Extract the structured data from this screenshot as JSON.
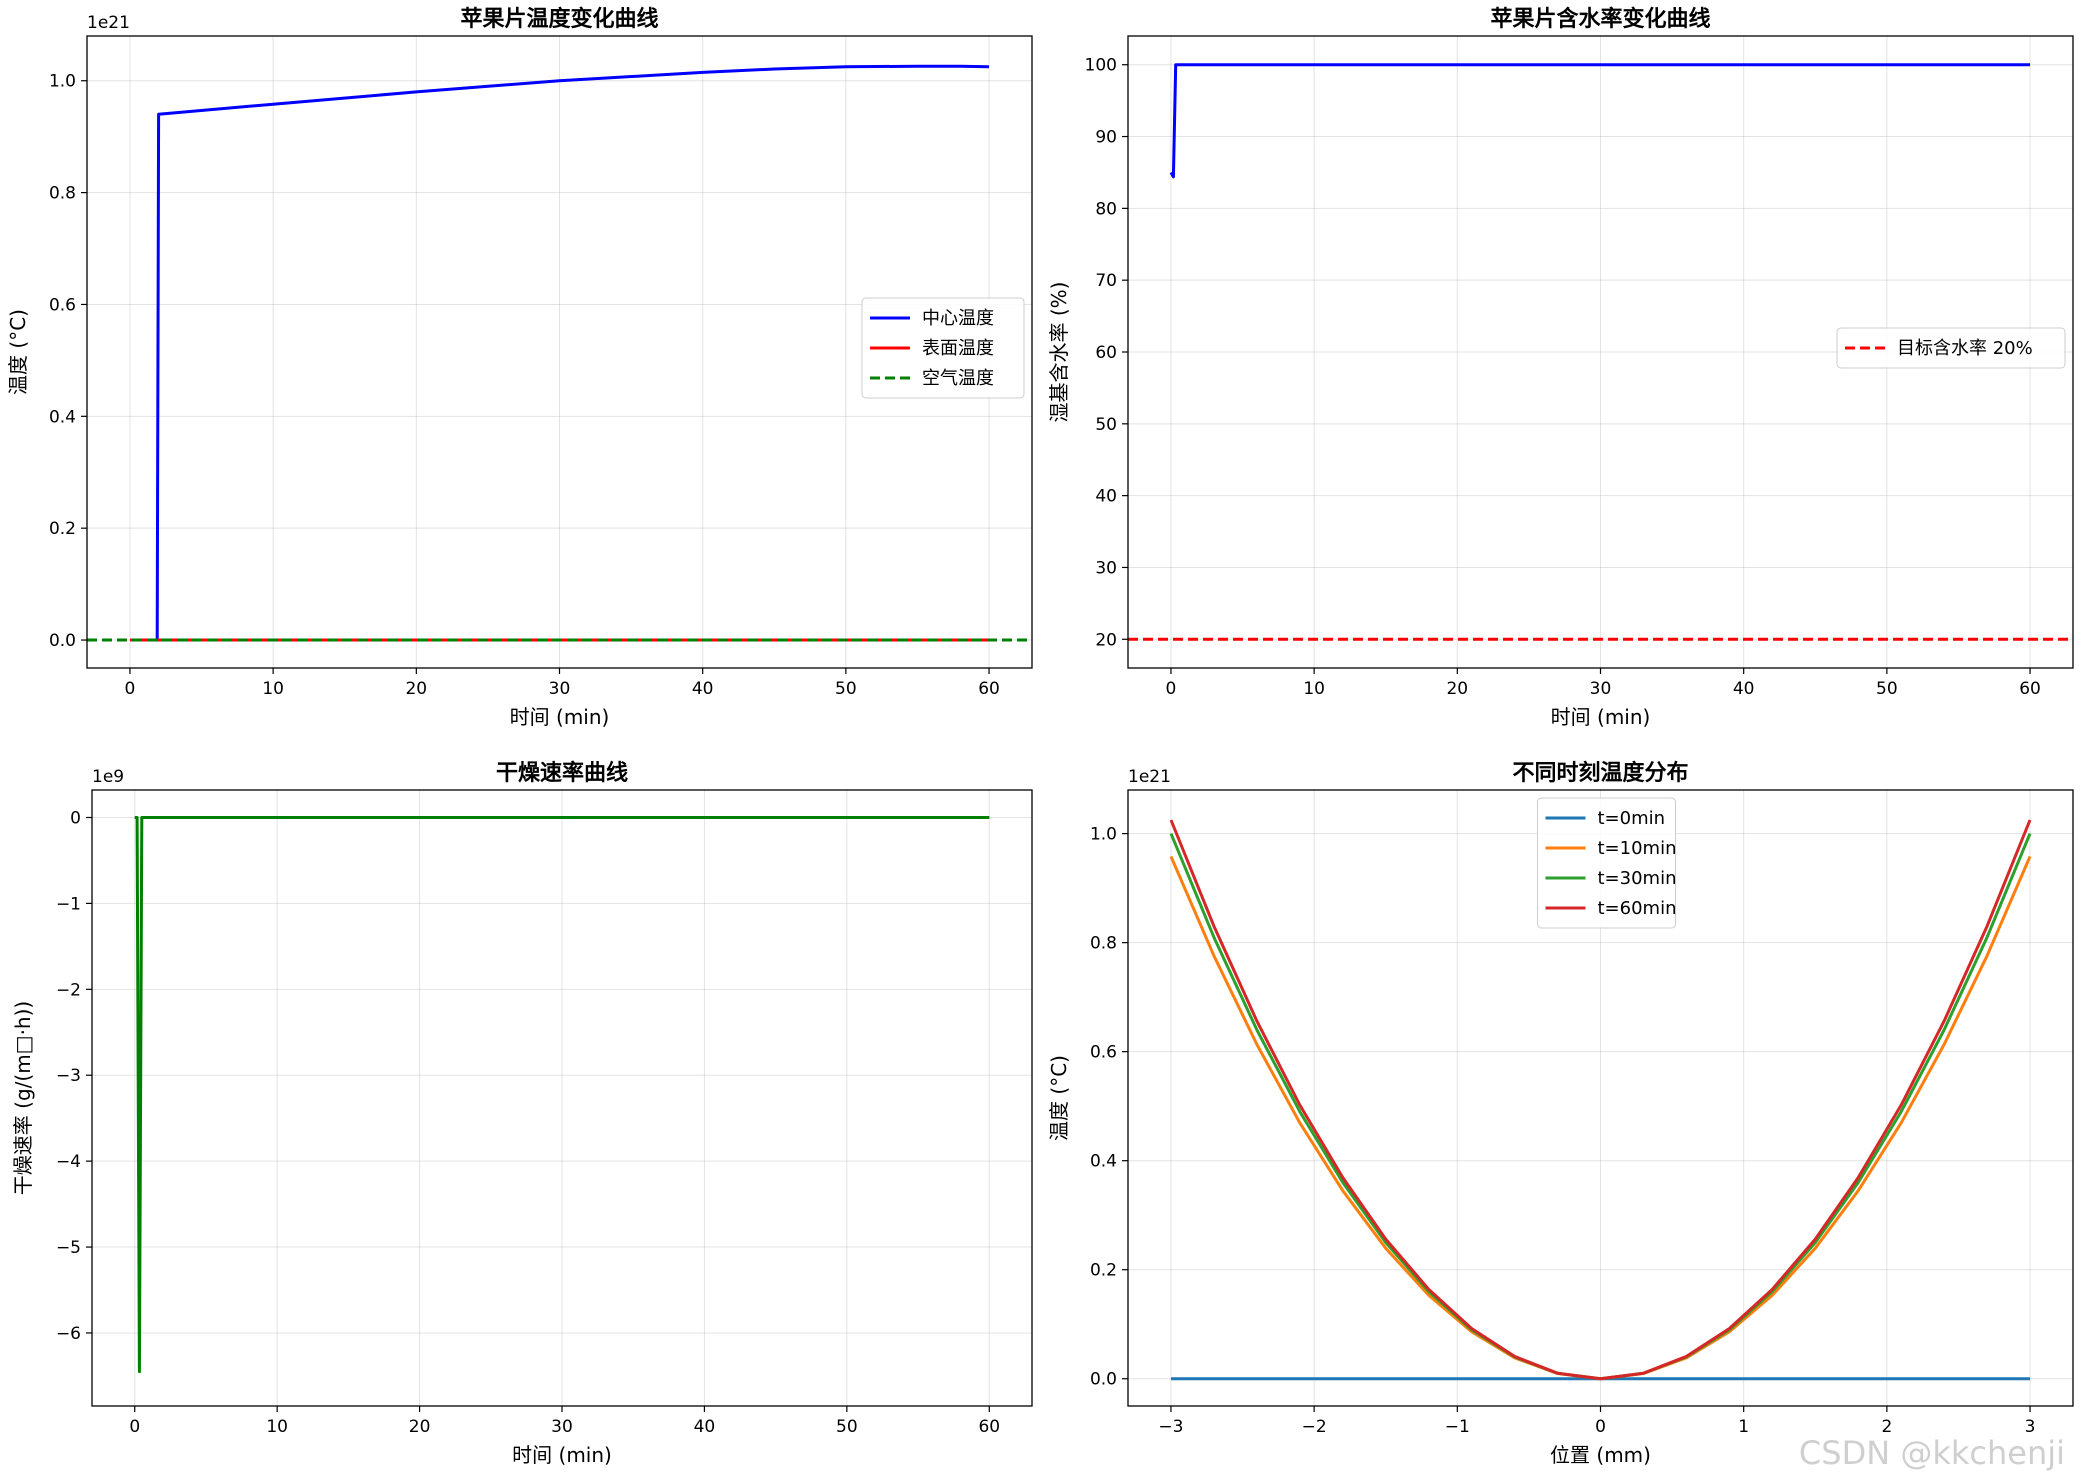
{
  "watermark": "CSDN @kkchenji",
  "chart_data": [
    {
      "type": "line",
      "title": "苹果片温度变化曲线",
      "xlabel": "时间 (min)",
      "ylabel": "温度 (°C)",
      "offset_text": "1e21",
      "xlim": [
        -3,
        63
      ],
      "ylim": [
        -0.05,
        1.08
      ],
      "xticks": [
        0,
        10,
        20,
        30,
        40,
        50,
        60
      ],
      "yticks": [
        0.0,
        0.2,
        0.4,
        0.6,
        0.8,
        1.0
      ],
      "ytick_labels": [
        "0.0",
        "0.2",
        "0.4",
        "0.6",
        "0.8",
        "1.0"
      ],
      "grid": true,
      "legend_position": "center-right",
      "series": [
        {
          "name": "中心温度",
          "color": "#0000ff",
          "style": "solid",
          "x": [
            0,
            1.9,
            1.9,
            2,
            10,
            20,
            30,
            40,
            45,
            50,
            55,
            58,
            60
          ],
          "y": [
            0,
            0,
            0,
            0.94,
            0.958,
            0.98,
            1.0,
            1.015,
            1.021,
            1.025,
            1.026,
            1.026,
            1.025
          ]
        },
        {
          "name": "表面温度",
          "color": "#ff0000",
          "style": "solid",
          "x": [
            0,
            60
          ],
          "y": [
            0,
            0
          ]
        },
        {
          "name": "空气温度",
          "color": "#008000",
          "style": "dashed",
          "axhline": true,
          "x": [
            -3,
            63
          ],
          "y": [
            0,
            0
          ]
        }
      ]
    },
    {
      "type": "line",
      "title": "苹果片含水率变化曲线",
      "xlabel": "时间 (min)",
      "ylabel": "湿基含水率 (%)",
      "xlim": [
        -3,
        63
      ],
      "ylim": [
        16,
        104
      ],
      "xticks": [
        0,
        10,
        20,
        30,
        40,
        50,
        60
      ],
      "yticks": [
        20,
        30,
        40,
        50,
        60,
        70,
        80,
        90,
        100
      ],
      "ytick_labels": [
        "20",
        "30",
        "40",
        "50",
        "60",
        "70",
        "80",
        "90",
        "100"
      ],
      "grid": true,
      "legend_position": "center-right",
      "series": [
        {
          "name": "",
          "color": "#0000ff",
          "style": "solid",
          "nolegend": true,
          "x": [
            0,
            0.17,
            0.33,
            0.5,
            60
          ],
          "y": [
            85,
            84.4,
            100,
            100,
            100
          ]
        },
        {
          "name": "目标含水率 20%",
          "color": "#ff0000",
          "style": "dashed",
          "axhline": true,
          "x": [
            -3,
            63
          ],
          "y": [
            20,
            20
          ]
        }
      ]
    },
    {
      "type": "line",
      "title": "干燥速率曲线",
      "xlabel": "时间 (min)",
      "ylabel": "干燥速率 (g/(m□·h))",
      "offset_text": "1e9",
      "xlim": [
        -3,
        63
      ],
      "ylim": [
        -6.85,
        0.32
      ],
      "xticks": [
        0,
        10,
        20,
        30,
        40,
        50,
        60
      ],
      "yticks": [
        0,
        -1,
        -2,
        -3,
        -4,
        -5,
        -6
      ],
      "ytick_labels": [
        "0",
        "−1",
        "−2",
        "−3",
        "−4",
        "−5",
        "−6"
      ],
      "grid": true,
      "legend_position": "none",
      "series": [
        {
          "name": "",
          "color": "#008000",
          "style": "solid",
          "nolegend": true,
          "x": [
            0,
            0.17,
            0.33,
            0.5,
            60
          ],
          "y": [
            0,
            0,
            -6.45,
            0,
            0
          ]
        }
      ]
    },
    {
      "type": "line",
      "title": "不同时刻温度分布",
      "xlabel": "位置 (mm)",
      "ylabel": "温度 (°C)",
      "offset_text": "1e21",
      "xlim": [
        -3.3,
        3.3
      ],
      "ylim": [
        -0.05,
        1.08
      ],
      "xticks": [
        -3,
        -2,
        -1,
        0,
        1,
        2,
        3
      ],
      "xtick_labels": [
        "−3",
        "−2",
        "−1",
        "0",
        "1",
        "2",
        "3"
      ],
      "yticks": [
        0.0,
        0.2,
        0.4,
        0.6,
        0.8,
        1.0
      ],
      "ytick_labels": [
        "0.0",
        "0.2",
        "0.4",
        "0.6",
        "0.8",
        "1.0"
      ],
      "grid": true,
      "legend_position": "top-center",
      "series": [
        {
          "name": "t=0min",
          "color": "#1f77b4",
          "style": "solid",
          "parabola": true,
          "peak": 0
        },
        {
          "name": "t=10min",
          "color": "#ff7f0e",
          "style": "solid",
          "parabola": true,
          "peak": 0.958
        },
        {
          "name": "t=30min",
          "color": "#2ca02c",
          "style": "solid",
          "parabola": true,
          "peak": 1.0
        },
        {
          "name": "t=60min",
          "color": "#d62728",
          "style": "solid",
          "parabola": true,
          "peak": 1.025
        }
      ]
    }
  ]
}
